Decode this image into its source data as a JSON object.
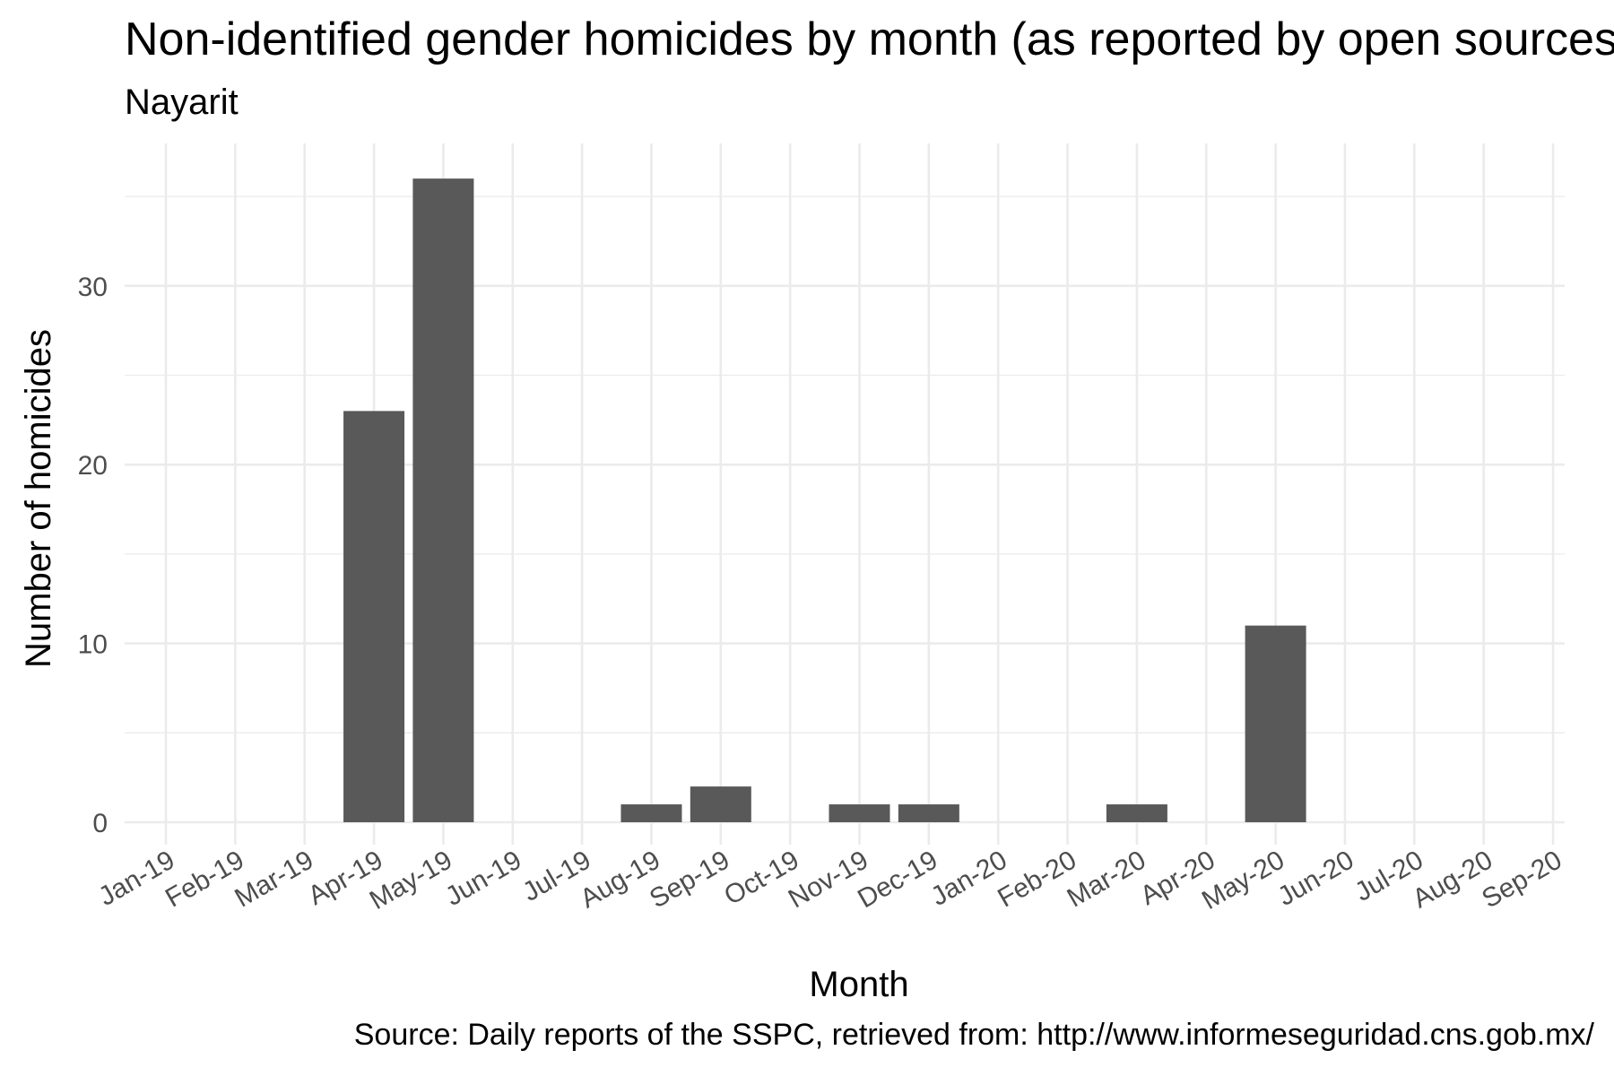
{
  "chart_data": {
    "type": "bar",
    "title": "Non-identified gender homicides by month (as reported by open sources)",
    "subtitle": "Nayarit",
    "caption": "Source: Daily reports of the SSPC, retrieved from: http://www.informeseguridad.cns.gob.mx/",
    "xlabel": "Month",
    "ylabel": "Number of homicides",
    "categories": [
      "Jan-19",
      "Feb-19",
      "Mar-19",
      "Apr-19",
      "May-19",
      "Jun-19",
      "Jul-19",
      "Aug-19",
      "Sep-19",
      "Oct-19",
      "Nov-19",
      "Dec-19",
      "Jan-20",
      "Feb-20",
      "Mar-20",
      "Apr-20",
      "May-20",
      "Jun-20",
      "Jul-20",
      "Aug-20",
      "Sep-20"
    ],
    "bars": [
      {
        "month": "Apr-19",
        "value": 23
      },
      {
        "month": "May-19",
        "value": 36
      },
      {
        "month": "Aug-19",
        "value": 1
      },
      {
        "month": "Sep-19",
        "value": 2
      },
      {
        "month": "Nov-19",
        "value": 1
      },
      {
        "month": "Dec-19",
        "value": 1
      },
      {
        "month": "Mar-20",
        "value": 1
      },
      {
        "month": "May-20",
        "value": 11
      }
    ],
    "yticks": [
      0,
      10,
      20,
      30
    ],
    "ylim": [
      0,
      36
    ],
    "grid": true,
    "legend": "none"
  }
}
